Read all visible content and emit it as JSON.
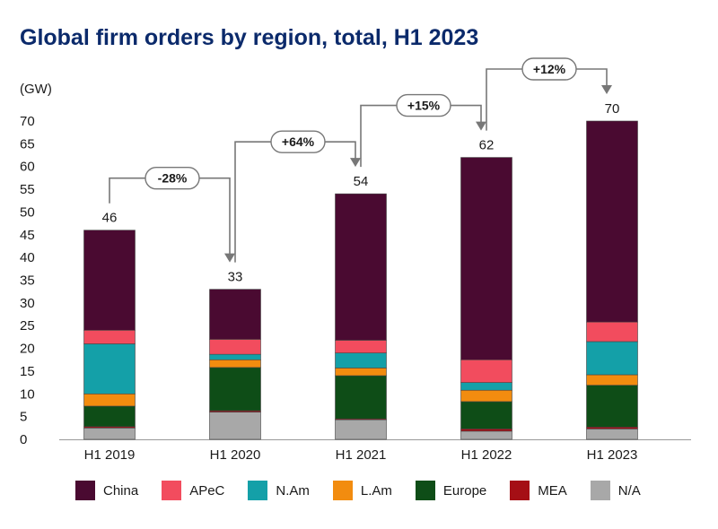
{
  "chart_data": {
    "type": "bar",
    "stacked": true,
    "title": "Global firm orders by region, total, H1 2023",
    "unit": "(GW)",
    "ylim": [
      0,
      70
    ],
    "yticks": [
      0,
      5,
      10,
      15,
      20,
      25,
      30,
      35,
      40,
      45,
      50,
      55,
      60,
      65,
      70
    ],
    "categories": [
      "H1 2019",
      "H1 2020",
      "H1 2021",
      "H1 2022",
      "H1 2023"
    ],
    "totals": [
      "46",
      "33",
      "54",
      "62",
      "70"
    ],
    "changes": [
      "-28%",
      "+64%",
      "+15%",
      "+12%"
    ],
    "legend_position": "bottom",
    "series": [
      {
        "name": "N/A",
        "color": "#a8a8a8",
        "values": [
          2.5,
          6,
          4.3,
          1.8,
          2.3
        ]
      },
      {
        "name": "MEA",
        "color": "#a50f15",
        "values": [
          0.3,
          0.3,
          0.2,
          0.5,
          0.4
        ]
      },
      {
        "name": "Europe",
        "color": "#0e4d17",
        "values": [
          4.5,
          9.5,
          9.5,
          6,
          9.2
        ]
      },
      {
        "name": "L.Am",
        "color": "#f28c0f",
        "values": [
          2.7,
          1.7,
          1.7,
          2.5,
          2.3
        ]
      },
      {
        "name": "N.Am",
        "color": "#14a0a8",
        "values": [
          11,
          1.2,
          3.3,
          1.7,
          7.3
        ]
      },
      {
        "name": "APeC",
        "color": "#f24c5e",
        "values": [
          3,
          3.3,
          2.8,
          5,
          4.3
        ]
      },
      {
        "name": "China",
        "color": "#4a0a31",
        "values": [
          22,
          11,
          32.2,
          44.5,
          44.2
        ]
      }
    ],
    "legend_order": [
      "China",
      "APeC",
      "N.Am",
      "L.Am",
      "Europe",
      "MEA",
      "N/A"
    ]
  }
}
